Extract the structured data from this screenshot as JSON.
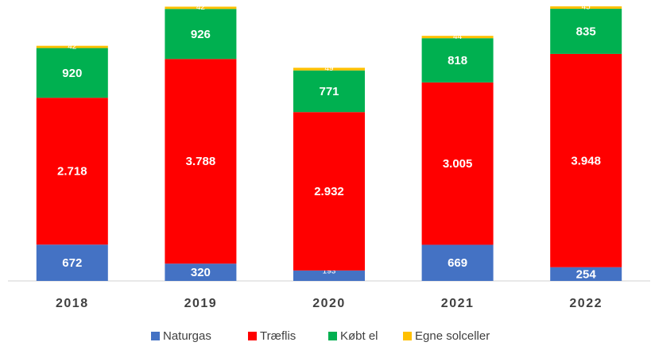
{
  "chart_data": {
    "type": "stacked_bar",
    "categories": [
      "2018",
      "2019",
      "2020",
      "2021",
      "2022"
    ],
    "series": [
      {
        "name": "Naturgas",
        "color": "#4472c4",
        "values": [
          672,
          320,
          193,
          669,
          254
        ]
      },
      {
        "name": "Træflis",
        "color": "#ff0000",
        "values": [
          2718,
          3788,
          2932,
          3005,
          3948
        ],
        "value_labels": [
          "2.718",
          "3.788",
          "2.932",
          "3.005",
          "3.948"
        ]
      },
      {
        "name": "Købt el",
        "color": "#00b050",
        "values": [
          920,
          926,
          771,
          818,
          835
        ]
      },
      {
        "name": "Egne solceller",
        "color": "#ffc000",
        "values": [
          42,
          42,
          49,
          44,
          45
        ]
      }
    ],
    "legend": "bottom"
  }
}
